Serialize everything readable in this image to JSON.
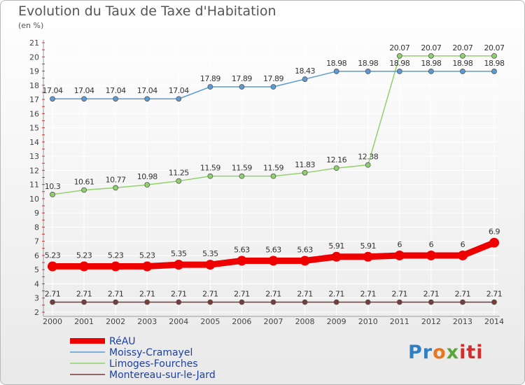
{
  "chart_data": {
    "type": "line",
    "title": "Evolution du Taux de Taxe d'Habitation",
    "subtitle": "(en %)",
    "x": [
      "2000",
      "2001",
      "2002",
      "2003",
      "2004",
      "2005",
      "2006",
      "2007",
      "2008",
      "2009",
      "2010",
      "2011",
      "2012",
      "2013",
      "2014"
    ],
    "ylim": [
      2,
      21
    ],
    "yticks": [
      2,
      3,
      4,
      5,
      6,
      7,
      8,
      9,
      10,
      11,
      12,
      13,
      14,
      15,
      16,
      17,
      18,
      19,
      20,
      21
    ],
    "grid": true,
    "legend_position": "bottom-left",
    "series": [
      {
        "name": "RéAU",
        "color": "#ee0000",
        "values": [
          5.23,
          5.23,
          5.23,
          5.23,
          5.35,
          5.35,
          5.63,
          5.63,
          5.63,
          5.91,
          5.91,
          6,
          6,
          6,
          6.9
        ],
        "labels": [
          "5.23",
          "5.23",
          "5.23",
          "5.23",
          "5.35",
          "5.35",
          "5.63",
          "5.63",
          "5.63",
          "5.91",
          "5.91",
          "6",
          "6",
          "6",
          "6.9"
        ]
      },
      {
        "name": "Moissy-Cramayel",
        "color": "#5b9bd5",
        "values": [
          17.04,
          17.04,
          17.04,
          17.04,
          17.04,
          17.89,
          17.89,
          17.89,
          18.43,
          18.98,
          18.98,
          18.98,
          18.98,
          18.98,
          18.98
        ],
        "labels": [
          "17.04",
          "17.04",
          "17.04",
          "17.04",
          "17.04",
          "17.89",
          "17.89",
          "17.89",
          "18.43",
          "18.98",
          "18.98",
          "18.98",
          "18.98",
          "18.98",
          "18.98"
        ]
      },
      {
        "name": "Limoges-Fourches",
        "color": "#8fd16a",
        "values": [
          10.3,
          10.61,
          10.77,
          10.98,
          11.25,
          11.59,
          11.59,
          11.59,
          11.83,
          12.16,
          12.38,
          20.07,
          20.07,
          20.07,
          20.07
        ],
        "labels": [
          "10.3",
          "10.61",
          "10.77",
          "10.98",
          "11.25",
          "11.59",
          "11.59",
          "11.59",
          "11.83",
          "12.16",
          "12.38",
          "20.07",
          "20.07",
          "20.07",
          "20.07"
        ]
      },
      {
        "name": "Montereau-sur-le-Jard",
        "color": "#7b3b3b",
        "values": [
          2.71,
          2.71,
          2.71,
          2.71,
          2.71,
          2.71,
          2.71,
          2.71,
          2.71,
          2.71,
          2.71,
          2.71,
          2.71,
          2.71,
          2.71
        ],
        "labels": [
          "2.71",
          "2.71",
          "2.71",
          "2.71",
          "2.71",
          "2.71",
          "2.71",
          "2.71",
          "2.71",
          "2.71",
          "2.71",
          "2.71",
          "2.71",
          "2.71",
          "2.71"
        ]
      }
    ]
  },
  "logo": {
    "p1": "Pr",
    "p2": "o",
    "p3": "x",
    "p4": "iti"
  }
}
